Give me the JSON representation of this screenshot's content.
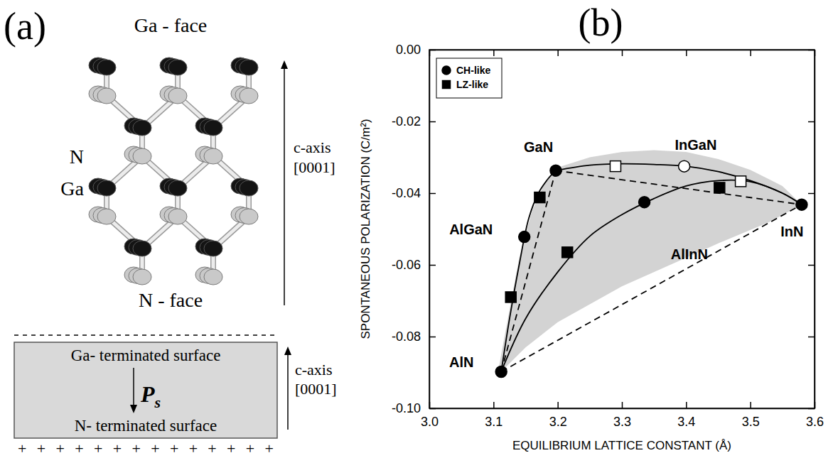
{
  "diagram": {
    "panel_label": "(a)",
    "top_label": "Ga - face",
    "atom_labels": [
      "N",
      "Ga"
    ],
    "bottom_label": "N - face",
    "axis_label": [
      "c-axis",
      "[0001]"
    ],
    "slab": {
      "top": "Ga- terminated surface",
      "bottom": "N- terminated surface",
      "polarization": "P",
      "polarization_sub": "s",
      "axis_label": [
        "c-axis",
        "[0001]"
      ],
      "charges": "+ + + + + + + + + + + + + +"
    }
  },
  "chart_data": {
    "type": "scatter",
    "title": "(b)",
    "x_label": "EQUILIBRIUM LATTICE CONSTANT (Å)",
    "y_label": "SPONTANEOUS POLARIZATION (C/m²)",
    "xlim": [
      3.0,
      3.6
    ],
    "xticks": [
      {
        "value": 3,
        "label": "3.0"
      },
      3.1,
      3.2,
      3.3,
      3.4,
      3.5,
      3.6
    ],
    "ylim": [
      -0.1,
      0
    ],
    "yticks": [
      {
        "value": 0,
        "label": "0.00"
      },
      -0.02,
      -0.04,
      -0.06,
      -0.08,
      {
        "value": -0.1,
        "label": "-0.10"
      }
    ],
    "legend": "upper left",
    "series": [
      {
        "type": "area",
        "color": "#d3d3d3",
        "x": [
          3.107,
          3.14,
          3.16,
          3.18,
          3.197,
          3.25,
          3.3,
          3.35,
          3.4,
          3.45,
          3.5,
          3.55,
          3.58,
          3.53,
          3.45,
          3.4,
          3.3,
          3.2,
          3.15,
          3.112
        ],
        "values": [
          -0.0898,
          -0.058,
          -0.045,
          -0.037,
          -0.033,
          -0.03,
          -0.0285,
          -0.028,
          -0.0285,
          -0.0305,
          -0.0335,
          -0.038,
          -0.0432,
          -0.048,
          -0.054,
          -0.058,
          -0.066,
          -0.076,
          -0.083,
          -0.0898
        ]
      },
      {
        "type": "line",
        "line_style": "dashed",
        "color": "#000000",
        "x": [
          3.112,
          3.197
        ],
        "values": [
          -0.0898,
          -0.0337
        ]
      },
      {
        "type": "line",
        "line_style": "dashed",
        "color": "#000000",
        "x": [
          3.197,
          3.58
        ],
        "values": [
          -0.0337,
          -0.0432
        ]
      },
      {
        "type": "line",
        "line_style": "dashed",
        "color": "#000000",
        "x": [
          3.112,
          3.58
        ],
        "values": [
          -0.0898,
          -0.0432
        ]
      },
      {
        "type": "line",
        "line_style": "solid",
        "color": "#000000",
        "x": [
          3.112,
          3.125,
          3.14,
          3.155,
          3.17,
          3.185,
          3.197
        ],
        "values": [
          -0.0898,
          -0.075,
          -0.06,
          -0.047,
          -0.04,
          -0.036,
          -0.0337
        ]
      },
      {
        "type": "line",
        "line_style": "solid",
        "color": "#000000",
        "x": [
          3.197,
          3.25,
          3.3,
          3.35,
          3.4,
          3.45,
          3.5,
          3.55,
          3.58
        ],
        "values": [
          -0.0337,
          -0.0322,
          -0.0318,
          -0.032,
          -0.0325,
          -0.034,
          -0.0365,
          -0.04,
          -0.0432
        ]
      },
      {
        "type": "line",
        "line_style": "solid",
        "color": "#000000",
        "x": [
          3.112,
          3.15,
          3.2,
          3.25,
          3.3,
          3.35,
          3.4,
          3.45,
          3.5,
          3.55,
          3.58
        ],
        "values": [
          -0.0898,
          -0.075,
          -0.062,
          -0.052,
          -0.046,
          -0.0415,
          -0.038,
          -0.0365,
          -0.0368,
          -0.04,
          -0.0432
        ]
      },
      {
        "name": "CH-like",
        "type": "scatter",
        "marker": "circle",
        "color": "#000000",
        "x": [
          3.112,
          3.148,
          3.197,
          3.335,
          3.58
        ],
        "values": [
          -0.0898,
          -0.0522,
          -0.0337,
          -0.0425,
          -0.0432
        ]
      },
      {
        "name": "LZ-like",
        "type": "scatter",
        "marker": "square",
        "color": "#000000",
        "x": [
          3.127,
          3.172,
          3.215,
          3.452
        ],
        "values": [
          -0.069,
          -0.0412,
          -0.0565,
          -0.0385
        ]
      },
      {
        "type": "scatter",
        "marker": "circle-open",
        "color": "#000000",
        "x": [
          3.397
        ],
        "values": [
          -0.0325
        ]
      },
      {
        "type": "scatter",
        "marker": "square-open",
        "color": "#000000",
        "x": [
          3.29,
          3.485
        ],
        "values": [
          -0.0325,
          -0.0367
        ]
      }
    ],
    "annotations": [
      {
        "text": "GaN",
        "x": 3.17,
        "y": -0.0285
      },
      {
        "text": "InGaN",
        "x": 3.415,
        "y": -0.028
      },
      {
        "text": "AlGaN",
        "x": 3.065,
        "y": -0.0515
      },
      {
        "text": "AlInN",
        "x": 3.405,
        "y": -0.0585
      },
      {
        "text": "InN",
        "x": 3.565,
        "y": -0.052
      },
      {
        "text": "AlN",
        "x": 3.05,
        "y": -0.0885
      }
    ]
  }
}
